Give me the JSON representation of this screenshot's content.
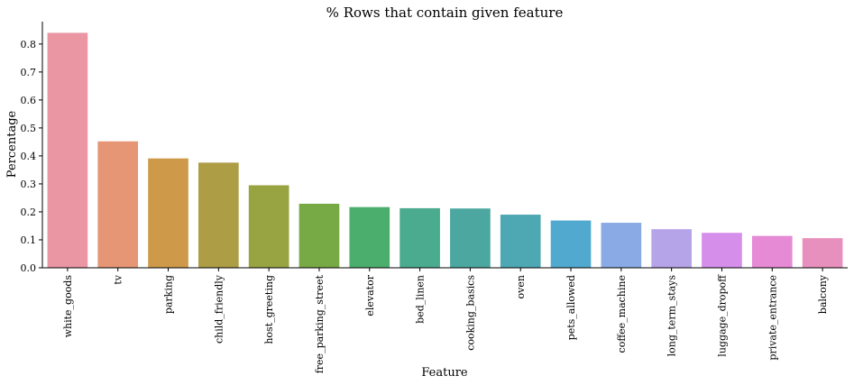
{
  "chart_data": {
    "type": "bar",
    "title": "% Rows that contain given feature",
    "xlabel": "Feature",
    "ylabel": "Percentage",
    "ylim": [
      0,
      0.88
    ],
    "yticks": [
      "0.0",
      "0.1",
      "0.2",
      "0.3",
      "0.4",
      "0.5",
      "0.6",
      "0.7",
      "0.8"
    ],
    "grid": false,
    "categories": [
      "white_goods",
      "tv",
      "parking",
      "child_friendly",
      "host_greeting",
      "free_parking_street",
      "elevator",
      "bed_linen",
      "cooking_basics",
      "oven",
      "pets_allowed",
      "coffee_machine",
      "long_term_stays",
      "luggage_dropoff",
      "private_entrance",
      "balcony"
    ],
    "values": [
      0.84,
      0.452,
      0.391,
      0.376,
      0.295,
      0.229,
      0.217,
      0.213,
      0.212,
      0.19,
      0.169,
      0.161,
      0.138,
      0.125,
      0.114,
      0.106
    ],
    "colors": [
      "#ea96a3",
      "#e69675",
      "#ce9a49",
      "#ad9d45",
      "#98a341",
      "#77aa45",
      "#4bae6c",
      "#4aab8e",
      "#4ba79f",
      "#4ea8b4",
      "#51a9cf",
      "#8aaae5",
      "#b6a4e9",
      "#d58eea",
      "#e68ad6",
      "#e890bd"
    ]
  }
}
